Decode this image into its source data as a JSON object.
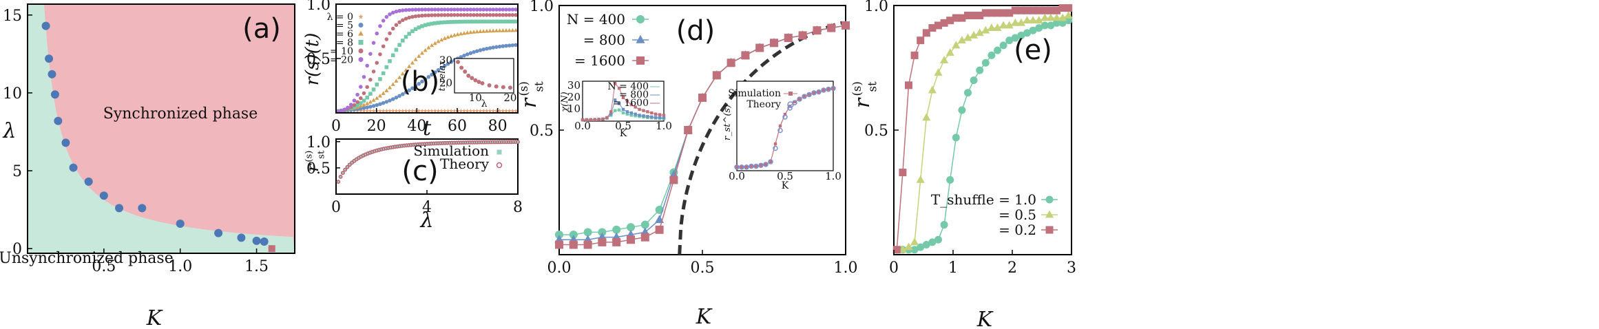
{
  "colors": {
    "sync_fill": "#f0b7bd",
    "unsync_fill": "#c9e8dc",
    "blue": "#4c78b5",
    "teal": "#74c9a8",
    "steelblue": "#6a8fc4",
    "rose": "#c0707a",
    "olive": "#c5d27a",
    "purple": "#a96fd9",
    "dashed": "#333333"
  },
  "chart_data": [
    {
      "panel": "a",
      "type": "scatter",
      "label": "(a)",
      "xlabel": "K",
      "ylabel": "λ",
      "xlim": [
        0,
        1.75
      ],
      "ylim": [
        -0.3,
        15.7
      ],
      "xticks": [
        "0.5",
        "1.0",
        "1.5"
      ],
      "xtick_values": [
        0.5,
        1.0,
        1.5
      ],
      "yticks": [
        "0",
        "5",
        "10",
        "15"
      ],
      "ytick_values": [
        0,
        5,
        10,
        15
      ],
      "region_labels": {
        "sync": "Synchronized phase",
        "unsync": "Unsynchronized phase"
      },
      "x": [
        0.12,
        0.14,
        0.16,
        0.18,
        0.2,
        0.25,
        0.3,
        0.4,
        0.5,
        0.6,
        0.75,
        1.0,
        1.25,
        1.4,
        1.5,
        1.55,
        1.6
      ],
      "y": [
        14.3,
        12.2,
        11.2,
        9.9,
        8.2,
        6.8,
        5.2,
        4.3,
        3.4,
        2.6,
        2.6,
        1.6,
        1.0,
        0.7,
        0.5,
        0.45,
        0.0
      ]
    },
    {
      "panel": "b",
      "type": "scatter",
      "label": "(b)",
      "xlabel": "t",
      "ylabel": "r^(s)(t)",
      "xlim": [
        0,
        90
      ],
      "ylim": [
        0,
        1
      ],
      "xticks": [
        "0",
        "20",
        "40",
        "60",
        "80"
      ],
      "xtick_values": [
        0,
        20,
        40,
        60,
        80
      ],
      "yticks": [
        "0.5",
        "1.0"
      ],
      "ytick_values": [
        0.5,
        1.0
      ],
      "legend_title": "λ = 0",
      "series": [
        {
          "name": "λ = 0",
          "color": "#e8a070",
          "sat": 0.02,
          "mid": 500,
          "tau": 1,
          "marker": "star"
        },
        {
          "name": "= 5",
          "color": "#6a8fc4",
          "sat": 0.64,
          "mid": 45,
          "tau": 12,
          "marker": "circle"
        },
        {
          "name": "= 6",
          "color": "#d4a050",
          "sat": 0.76,
          "mid": 34,
          "tau": 9,
          "marker": "triangle"
        },
        {
          "name": "= 8",
          "color": "#74c9a8",
          "sat": 0.84,
          "mid": 25,
          "tau": 6,
          "marker": "square"
        },
        {
          "name": "= 10",
          "color": "#c0707a",
          "sat": 0.9,
          "mid": 20,
          "tau": 4.5,
          "marker": "circle"
        },
        {
          "name": "= 20",
          "color": "#a96fd9",
          "sat": 0.95,
          "mid": 16,
          "tau": 3.5,
          "marker": "circle"
        }
      ]
    },
    {
      "panel": "b_inset",
      "type": "scatter",
      "xlabel": "λ",
      "ylabel": "t_relax",
      "xticks": [
        "10",
        "20"
      ],
      "xtick_values": [
        10,
        20
      ],
      "yticks": [
        "20",
        "30"
      ],
      "ytick_values": [
        20,
        30
      ],
      "xlim": [
        4,
        21
      ],
      "ylim": [
        16,
        31
      ],
      "x": [
        5,
        6,
        7,
        8,
        9,
        10,
        11,
        12,
        14,
        16,
        18,
        20
      ],
      "y": [
        29.5,
        27,
        25.3,
        23.5,
        22.5,
        21.5,
        20.8,
        20.2,
        19.3,
        18.8,
        18.5,
        18.3
      ]
    },
    {
      "panel": "c",
      "type": "scatter",
      "label": "(c)",
      "xlabel": "λ",
      "ylabel": "r_st^(s)",
      "xlim": [
        0,
        8
      ],
      "ylim": [
        0,
        1.05
      ],
      "xticks": [
        "0",
        "4",
        "8"
      ],
      "xtick_values": [
        0,
        4,
        8
      ],
      "yticks": [
        "0.5",
        "1.0"
      ],
      "ytick_values": [
        0.5,
        1.0
      ],
      "legend": [
        "Simulation",
        "Theory"
      ],
      "curve": "1 - 0.5*exp(-1.3*λ)^... approx saturating",
      "lambda_step": 0.1
    },
    {
      "panel": "d",
      "type": "line",
      "label": "(d)",
      "xlabel": "K",
      "ylabel": "r_st^(s)",
      "xlim": [
        0,
        1
      ],
      "ylim": [
        0,
        1
      ],
      "xticks": [
        "0.0",
        "0.5",
        "1.0"
      ],
      "xtick_values": [
        0.0,
        0.5,
        1.0
      ],
      "yticks": [
        "0.5",
        "1.0"
      ],
      "ytick_values": [
        0.5,
        1.0
      ],
      "x": [
        0.0,
        0.05,
        0.1,
        0.15,
        0.2,
        0.25,
        0.3,
        0.35,
        0.4,
        0.45,
        0.5,
        0.55,
        0.6,
        0.65,
        0.7,
        0.75,
        0.8,
        0.85,
        0.9,
        0.95,
        1.0
      ],
      "series": [
        {
          "name": "N = 400",
          "color": "#74c9a8",
          "marker": "circle",
          "values": [
            0.08,
            0.08,
            0.09,
            0.09,
            0.1,
            0.11,
            0.12,
            0.18,
            0.33,
            0.5,
            0.63,
            0.72,
            0.77,
            0.8,
            0.83,
            0.85,
            0.87,
            0.88,
            0.9,
            0.91,
            0.92
          ]
        },
        {
          "name": "= 800",
          "color": "#6a8fc4",
          "marker": "triangle",
          "values": [
            0.06,
            0.06,
            0.06,
            0.07,
            0.07,
            0.08,
            0.09,
            0.14,
            0.32,
            0.5,
            0.63,
            0.72,
            0.77,
            0.8,
            0.83,
            0.85,
            0.87,
            0.88,
            0.9,
            0.91,
            0.92
          ]
        },
        {
          "name": "= 1600",
          "color": "#c0707a",
          "marker": "square",
          "values": [
            0.04,
            0.04,
            0.04,
            0.05,
            0.05,
            0.06,
            0.07,
            0.1,
            0.3,
            0.5,
            0.63,
            0.72,
            0.77,
            0.8,
            0.83,
            0.85,
            0.87,
            0.88,
            0.9,
            0.91,
            0.92
          ]
        }
      ],
      "theory_Kc": 0.42
    },
    {
      "panel": "d_inset1",
      "type": "line",
      "ylabel": "χ(N)",
      "xlabel": "K",
      "xticks": [
        "0.0",
        "0.5",
        "1.0"
      ],
      "xtick_values": [
        0.0,
        0.5,
        1.0
      ],
      "yticks": [
        "10",
        "20",
        "30"
      ],
      "ytick_values": [
        10,
        20,
        30
      ],
      "xlim": [
        0,
        1
      ],
      "ylim": [
        0,
        34
      ],
      "x": [
        0.0,
        0.05,
        0.1,
        0.15,
        0.2,
        0.25,
        0.3,
        0.35,
        0.4,
        0.45,
        0.5,
        0.55,
        0.6,
        0.65,
        0.7,
        0.75,
        0.8,
        0.85,
        0.9,
        0.95,
        1.0
      ],
      "series": [
        {
          "name": "N = 400",
          "color": "#74c9a8",
          "values": [
            1,
            1.2,
            1.3,
            1.4,
            1.5,
            1.7,
            2.5,
            5,
            9,
            9.5,
            7,
            6,
            5,
            4.5,
            4,
            3.5,
            3,
            2.8,
            2.5,
            2.3,
            2
          ]
        },
        {
          "name": "= 800",
          "color": "#6a8fc4",
          "values": [
            1,
            1.2,
            1.3,
            1.4,
            1.5,
            1.8,
            2.8,
            6,
            18,
            15,
            10,
            8,
            7,
            6,
            5,
            4.5,
            4,
            3.6,
            3.2,
            3,
            2.8
          ]
        },
        {
          "name": "= 1600",
          "color": "#c0707a",
          "values": [
            1,
            1.2,
            1.3,
            1.4,
            1.5,
            1.8,
            3,
            8,
            32,
            28,
            20,
            17,
            14,
            12,
            10,
            9,
            8,
            7,
            6,
            5.5,
            5
          ]
        }
      ]
    },
    {
      "panel": "d_inset2",
      "type": "line",
      "ylabel": "r_st^(s)",
      "xlabel": "K",
      "xticks": [
        "0.0",
        "0.5",
        "1.0"
      ],
      "xtick_values": [
        0.0,
        0.5,
        1.0
      ],
      "xlim": [
        0,
        1
      ],
      "ylim": [
        0,
        1
      ],
      "legend": [
        "Simulation",
        "Theory"
      ],
      "x": [
        0.0,
        0.05,
        0.1,
        0.15,
        0.2,
        0.25,
        0.3,
        0.35,
        0.4,
        0.45,
        0.5,
        0.55,
        0.6,
        0.65,
        0.7,
        0.75,
        0.8,
        0.85,
        0.9,
        0.95,
        1.0
      ],
      "sim": [
        0.04,
        0.04,
        0.04,
        0.05,
        0.05,
        0.06,
        0.07,
        0.1,
        0.3,
        0.5,
        0.63,
        0.72,
        0.77,
        0.8,
        0.83,
        0.85,
        0.87,
        0.88,
        0.9,
        0.91,
        0.92
      ],
      "theory": [
        0.04,
        0.04,
        0.04,
        0.05,
        0.05,
        0.06,
        0.07,
        0.1,
        0.25,
        0.45,
        0.6,
        0.7,
        0.76,
        0.8,
        0.83,
        0.85,
        0.87,
        0.88,
        0.9,
        0.91,
        0.92
      ]
    },
    {
      "panel": "e",
      "type": "line",
      "label": "(e)",
      "xlabel": "K",
      "ylabel": "r_st^(s)",
      "xlim": [
        0,
        3
      ],
      "ylim": [
        0,
        1
      ],
      "xticks": [
        "0",
        "1",
        "2",
        "3"
      ],
      "xtick_values": [
        0,
        1,
        2,
        3
      ],
      "yticks": [
        "0.5",
        "1.0"
      ],
      "ytick_values": [
        0.5,
        1.0
      ],
      "x": [
        0.05,
        0.15,
        0.25,
        0.35,
        0.45,
        0.55,
        0.65,
        0.75,
        0.85,
        0.95,
        1.05,
        1.15,
        1.25,
        1.35,
        1.45,
        1.55,
        1.65,
        1.75,
        1.85,
        1.95,
        2.05,
        2.15,
        2.25,
        2.35,
        2.45,
        2.55,
        2.65,
        2.75,
        2.85,
        2.95
      ],
      "series": [
        {
          "name": "T_shuffle = 1.0",
          "color": "#74c9a8",
          "marker": "circle",
          "values": [
            0.02,
            0.02,
            0.02,
            0.02,
            0.03,
            0.04,
            0.05,
            0.06,
            0.12,
            0.3,
            0.47,
            0.58,
            0.65,
            0.7,
            0.74,
            0.77,
            0.8,
            0.82,
            0.84,
            0.86,
            0.87,
            0.88,
            0.89,
            0.9,
            0.91,
            0.92,
            0.92,
            0.93,
            0.93,
            0.94
          ]
        },
        {
          "name": "= 0.5",
          "color": "#c5d27a",
          "marker": "triangle",
          "values": [
            0.02,
            0.02,
            0.03,
            0.05,
            0.3,
            0.55,
            0.66,
            0.73,
            0.78,
            0.81,
            0.84,
            0.86,
            0.87,
            0.88,
            0.89,
            0.9,
            0.91,
            0.91,
            0.92,
            0.92,
            0.93,
            0.93,
            0.94,
            0.94,
            0.94,
            0.95,
            0.95,
            0.95,
            0.95,
            0.96
          ]
        },
        {
          "name": "= 0.2",
          "color": "#c0707a",
          "marker": "square",
          "values": [
            0.02,
            0.33,
            0.68,
            0.8,
            0.86,
            0.89,
            0.91,
            0.92,
            0.93,
            0.94,
            0.95,
            0.95,
            0.96,
            0.96,
            0.96,
            0.97,
            0.97,
            0.97,
            0.97,
            0.97,
            0.98,
            0.98,
            0.98,
            0.98,
            0.98,
            0.98,
            0.98,
            0.98,
            0.99,
            0.99
          ]
        }
      ]
    }
  ]
}
